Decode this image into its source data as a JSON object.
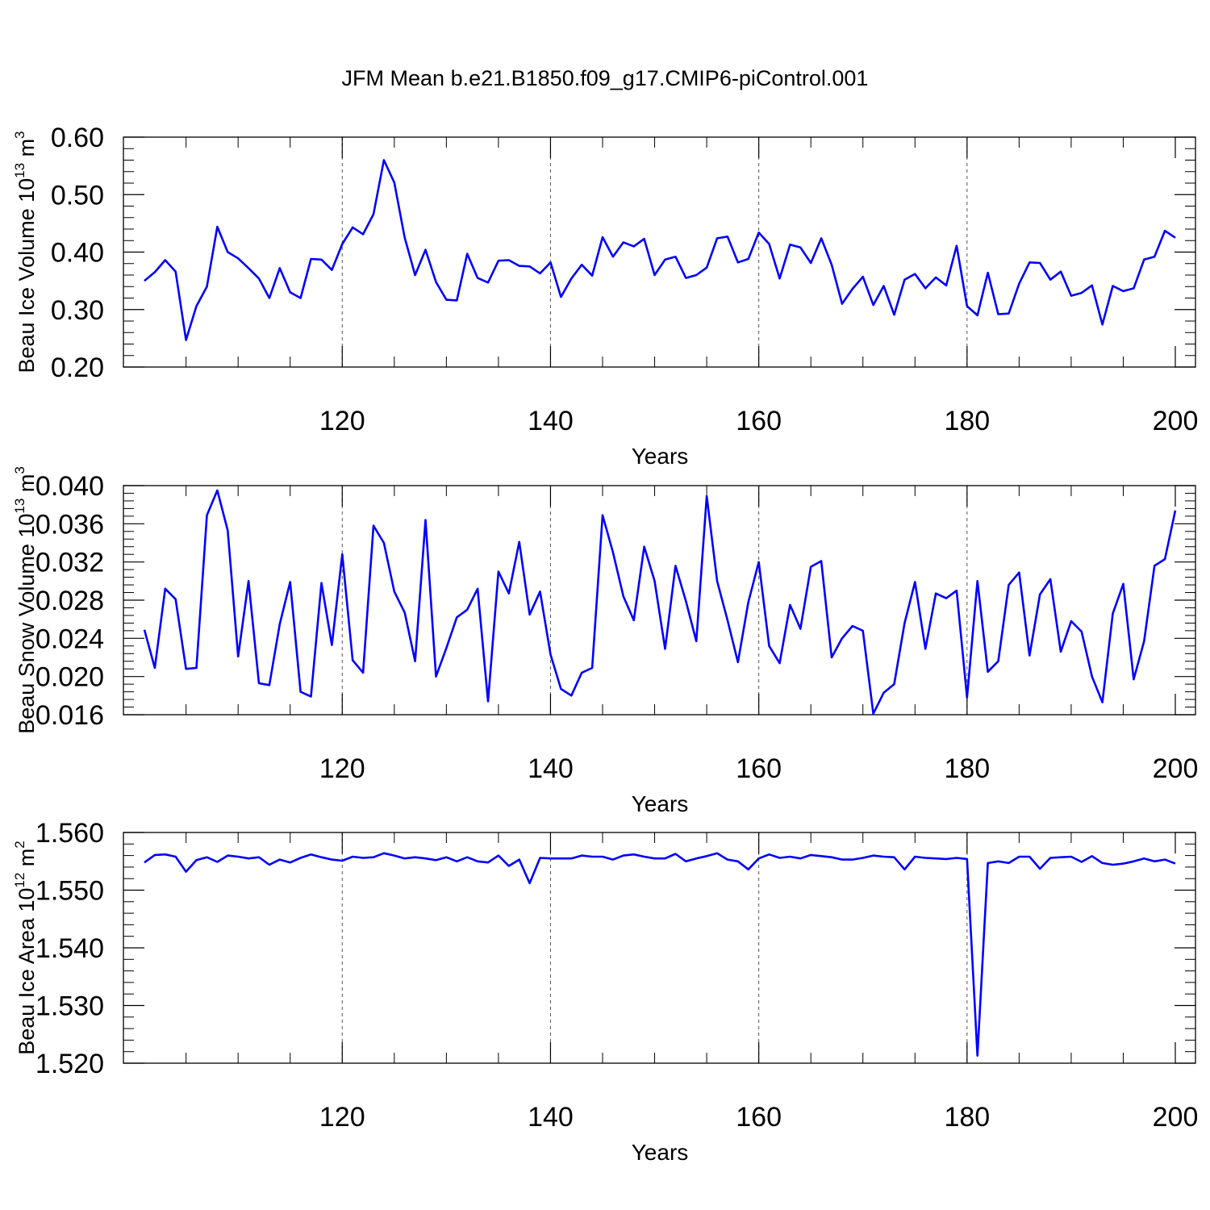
{
  "title": "JFM Mean b.e21.B1850.f09_g17.CMIP6-piControl.001",
  "line_color": "#0000ff",
  "chart_data": [
    {
      "type": "line",
      "title": "",
      "xlabel": "Years",
      "ylabel": {
        "base": "Beau Ice Volume 10",
        "exp": "13",
        "unit": " m",
        "unit_exp": "3"
      },
      "xlim": [
        101,
        200
      ],
      "ylim": [
        0.2,
        0.6
      ],
      "xticks": [
        120,
        140,
        160,
        180,
        200
      ],
      "yticks": [
        "0.20",
        "0.30",
        "0.40",
        "0.50",
        "0.60"
      ],
      "grid_x": true,
      "series": [
        {
          "x": [
            101,
            102,
            103,
            104,
            105,
            106,
            107,
            108,
            109,
            110,
            111,
            112,
            113,
            114,
            115,
            116,
            117,
            118,
            119,
            120,
            121,
            122,
            123,
            124,
            125,
            126,
            127,
            128,
            129,
            130,
            131,
            132,
            133,
            134,
            135,
            136,
            137,
            138,
            139,
            140,
            141,
            142,
            143,
            144,
            145,
            146,
            147,
            148,
            149,
            150,
            151,
            152,
            153,
            154,
            155,
            156,
            157,
            158,
            159,
            160,
            161,
            162,
            163,
            164,
            165,
            166,
            167,
            168,
            169,
            170,
            171,
            172,
            173,
            174,
            175,
            176,
            177,
            178,
            179,
            180,
            181,
            182,
            183,
            184,
            185,
            186,
            187,
            188,
            189,
            190,
            191,
            192,
            193,
            194,
            195,
            196,
            197,
            198,
            199,
            200
          ],
          "values": [
            0.35,
            0.365,
            0.386,
            0.366,
            0.247,
            0.306,
            0.34,
            0.444,
            0.4,
            0.389,
            0.372,
            0.354,
            0.32,
            0.372,
            0.33,
            0.32,
            0.388,
            0.387,
            0.369,
            0.414,
            0.443,
            0.431,
            0.466,
            0.56,
            0.521,
            0.425,
            0.36,
            0.404,
            0.348,
            0.317,
            0.316,
            0.397,
            0.355,
            0.347,
            0.385,
            0.386,
            0.376,
            0.375,
            0.363,
            0.382,
            0.322,
            0.354,
            0.378,
            0.359,
            0.426,
            0.392,
            0.417,
            0.41,
            0.423,
            0.36,
            0.387,
            0.392,
            0.355,
            0.36,
            0.373,
            0.424,
            0.427,
            0.382,
            0.388,
            0.434,
            0.414,
            0.354,
            0.413,
            0.408,
            0.381,
            0.424,
            0.378,
            0.31,
            0.336,
            0.357,
            0.308,
            0.341,
            0.291,
            0.352,
            0.362,
            0.337,
            0.356,
            0.342,
            0.411,
            0.306,
            0.29,
            0.364,
            0.292,
            0.293,
            0.345,
            0.382,
            0.381,
            0.352,
            0.366,
            0.324,
            0.329,
            0.342,
            0.274,
            0.341,
            0.332,
            0.337,
            0.387,
            0.392,
            0.437,
            0.425
          ]
        }
      ]
    },
    {
      "type": "line",
      "title": "",
      "xlabel": "Years",
      "ylabel": {
        "base": "Beau Snow Volume 10",
        "exp": "13",
        "unit": " m",
        "unit_exp": "3"
      },
      "xlim": [
        101,
        200
      ],
      "ylim": [
        0.016,
        0.04
      ],
      "xticks": [
        120,
        140,
        160,
        180,
        200
      ],
      "yticks": [
        "0.016",
        "0.020",
        "0.024",
        "0.028",
        "0.032",
        "0.036",
        "0.040"
      ],
      "grid_x": true,
      "series": [
        {
          "x": [
            101,
            102,
            103,
            104,
            105,
            106,
            107,
            108,
            109,
            110,
            111,
            112,
            113,
            114,
            115,
            116,
            117,
            118,
            119,
            120,
            121,
            122,
            123,
            124,
            125,
            126,
            127,
            128,
            129,
            130,
            131,
            132,
            133,
            134,
            135,
            136,
            137,
            138,
            139,
            140,
            141,
            142,
            143,
            144,
            145,
            146,
            147,
            148,
            149,
            150,
            151,
            152,
            153,
            154,
            155,
            156,
            157,
            158,
            159,
            160,
            161,
            162,
            163,
            164,
            165,
            166,
            167,
            168,
            169,
            170,
            171,
            172,
            173,
            174,
            175,
            176,
            177,
            178,
            179,
            180,
            181,
            182,
            183,
            184,
            185,
            186,
            187,
            188,
            189,
            190,
            191,
            192,
            193,
            194,
            195,
            196,
            197,
            198,
            199,
            200
          ],
          "values": [
            0.0249,
            0.0209,
            0.0292,
            0.0281,
            0.0208,
            0.0209,
            0.0369,
            0.0395,
            0.0353,
            0.0221,
            0.03,
            0.0193,
            0.0191,
            0.0255,
            0.0299,
            0.0184,
            0.0179,
            0.0298,
            0.0233,
            0.0328,
            0.0217,
            0.0204,
            0.0358,
            0.034,
            0.0289,
            0.0267,
            0.0216,
            0.0364,
            0.02,
            0.023,
            0.0262,
            0.027,
            0.0292,
            0.0174,
            0.031,
            0.0287,
            0.0341,
            0.0265,
            0.0289,
            0.0223,
            0.0187,
            0.018,
            0.0204,
            0.0209,
            0.0369,
            0.033,
            0.0284,
            0.0259,
            0.0336,
            0.03,
            0.0229,
            0.0316,
            0.0279,
            0.0237,
            0.0389,
            0.03,
            0.0259,
            0.0215,
            0.0278,
            0.032,
            0.0232,
            0.0214,
            0.0275,
            0.025,
            0.0315,
            0.0321,
            0.022,
            0.024,
            0.0253,
            0.0248,
            0.0161,
            0.0183,
            0.0192,
            0.0256,
            0.0299,
            0.0229,
            0.0287,
            0.0282,
            0.029,
            0.0178,
            0.03,
            0.0205,
            0.0216,
            0.0296,
            0.0309,
            0.0222,
            0.0286,
            0.0302,
            0.0226,
            0.0258,
            0.0247,
            0.02,
            0.0173,
            0.0266,
            0.0297,
            0.0197,
            0.0237,
            0.0316,
            0.0323,
            0.0374
          ]
        }
      ]
    },
    {
      "type": "line",
      "title": "",
      "xlabel": "Years",
      "ylabel": {
        "base": "Beau Ice Area 10",
        "exp": "12",
        "unit": " m",
        "unit_exp": "2"
      },
      "xlim": [
        101,
        200
      ],
      "ylim": [
        1.52,
        1.56
      ],
      "xticks": [
        120,
        140,
        160,
        180,
        200
      ],
      "yticks": [
        "1.520",
        "1.530",
        "1.540",
        "1.550",
        "1.560"
      ],
      "grid_x": true,
      "series": [
        {
          "x": [
            101,
            102,
            103,
            104,
            105,
            106,
            107,
            108,
            109,
            110,
            111,
            112,
            113,
            114,
            115,
            116,
            117,
            118,
            119,
            120,
            121,
            122,
            123,
            124,
            125,
            126,
            127,
            128,
            129,
            130,
            131,
            132,
            133,
            134,
            135,
            136,
            137,
            138,
            139,
            140,
            141,
            142,
            143,
            144,
            145,
            146,
            147,
            148,
            149,
            150,
            151,
            152,
            153,
            154,
            155,
            156,
            157,
            158,
            159,
            160,
            161,
            162,
            163,
            164,
            165,
            166,
            167,
            168,
            169,
            170,
            171,
            172,
            173,
            174,
            175,
            176,
            177,
            178,
            179,
            180,
            181,
            182,
            183,
            184,
            185,
            186,
            187,
            188,
            189,
            190,
            191,
            192,
            193,
            194,
            195,
            196,
            197,
            198,
            199,
            200
          ],
          "values": [
            1.5548,
            1.5561,
            1.5562,
            1.5558,
            1.5532,
            1.5552,
            1.5557,
            1.5549,
            1.556,
            1.5558,
            1.5555,
            1.5557,
            1.5544,
            1.5553,
            1.5548,
            1.5556,
            1.5562,
            1.5557,
            1.5553,
            1.5551,
            1.5558,
            1.5556,
            1.5557,
            1.5564,
            1.556,
            1.5555,
            1.5557,
            1.5555,
            1.5552,
            1.5557,
            1.555,
            1.5557,
            1.555,
            1.5548,
            1.556,
            1.5542,
            1.5553,
            1.5512,
            1.5556,
            1.5555,
            1.5555,
            1.5555,
            1.556,
            1.5558,
            1.5558,
            1.5553,
            1.556,
            1.5562,
            1.5558,
            1.5555,
            1.5555,
            1.5563,
            1.555,
            1.5555,
            1.5559,
            1.5564,
            1.5553,
            1.555,
            1.5536,
            1.5555,
            1.5562,
            1.5556,
            1.5558,
            1.5555,
            1.5561,
            1.5559,
            1.5557,
            1.5553,
            1.5553,
            1.5556,
            1.556,
            1.5558,
            1.5557,
            1.5536,
            1.5558,
            1.5556,
            1.5555,
            1.5554,
            1.5556,
            1.5554,
            1.5213,
            1.5547,
            1.555,
            1.5547,
            1.5558,
            1.5558,
            1.5537,
            1.5556,
            1.5557,
            1.5558,
            1.5549,
            1.5559,
            1.5547,
            1.5544,
            1.5546,
            1.555,
            1.5555,
            1.555,
            1.5553,
            1.5546
          ]
        }
      ]
    }
  ]
}
